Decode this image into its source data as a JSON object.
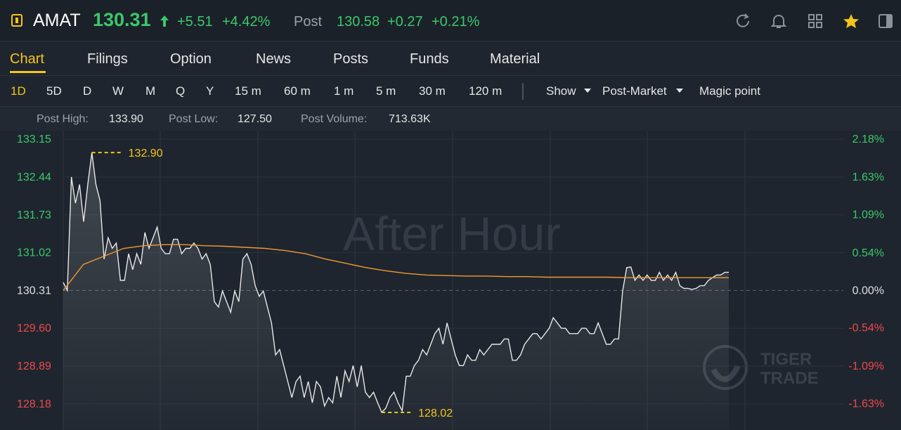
{
  "header": {
    "symbol": "AMAT",
    "price": "130.31",
    "change": "+5.51",
    "change_pct": "+4.42%",
    "post_label": "Post",
    "post_price": "130.58",
    "post_change": "+0.27",
    "post_change_pct": "+0.21%"
  },
  "tabs": [
    "Chart",
    "Filings",
    "Option",
    "News",
    "Posts",
    "Funds",
    "Material"
  ],
  "periods": [
    "1D",
    "5D",
    "D",
    "W",
    "M",
    "Q",
    "Y",
    "15 m",
    "60 m",
    "1 m",
    "5 m",
    "30 m",
    "120 m"
  ],
  "menus": [
    "Show",
    "Post-Market",
    "Magic point"
  ],
  "stats": [
    {
      "label": "Post High:",
      "value": "133.90"
    },
    {
      "label": "Post Low:",
      "value": "127.50"
    },
    {
      "label": "Post Volume:",
      "value": "713.63K"
    }
  ],
  "chart_data": {
    "type": "line",
    "watermark": "After Hour",
    "logo": [
      "TIGER",
      "TRADE"
    ],
    "ylim": [
      127.69,
      133.31
    ],
    "yticks": [
      133.15,
      132.44,
      131.73,
      131.02,
      130.31,
      {
        "value": 129.6,
        "label": "129.60"
      },
      128.89,
      128.18
    ],
    "y2lim": [
      -2.01,
      2.3
    ],
    "y2ticks": [
      {
        "value": 2.18,
        "label": "2.18%"
      },
      {
        "value": 1.63,
        "label": "1.63%"
      },
      {
        "value": 1.09,
        "label": "1.09%"
      },
      {
        "value": 0.54,
        "label": "0.54%"
      },
      {
        "value": 0,
        "label": "0.00%"
      },
      {
        "value": -0.54,
        "label": "-0.54%"
      },
      {
        "value": -1.09,
        "label": "-1.09%"
      },
      {
        "value": -1.63,
        "label": "-1.63%"
      }
    ],
    "series": [
      {
        "color": "#e8e8e8",
        "values": [
          130.46,
          130.31,
          132.44,
          131.95,
          132.3,
          131.6,
          132.3,
          132.9,
          132.3,
          132.0,
          130.9,
          131.3,
          131.1,
          131.2,
          130.5,
          130.5,
          131.0,
          130.7,
          131.0,
          130.8,
          131.4,
          131.1,
          131.3,
          131.5,
          131.1,
          131.0,
          131.0,
          131.27,
          131.27,
          131.0,
          131.1,
          131.1,
          131.2,
          131.1,
          130.9,
          131.0,
          130.8,
          130.1,
          130.0,
          130.3,
          130.1,
          129.9,
          130.3,
          130.1,
          130.9,
          131.0,
          130.8,
          130.4,
          130.2,
          130.3,
          130.0,
          129.7,
          129.1,
          129.2,
          128.9,
          128.6,
          128.3,
          128.6,
          128.7,
          128.3,
          128.6,
          128.2,
          128.6,
          128.5,
          128.14,
          128.3,
          128.2,
          128.7,
          128.3,
          128.8,
          128.6,
          128.9,
          128.5,
          128.9,
          128.4,
          128.3,
          128.4,
          128.2,
          128.02,
          128.1,
          128.3,
          128.4,
          128.2,
          128.05,
          128.7,
          128.7,
          128.9,
          129.0,
          129.2,
          129.1,
          129.3,
          129.5,
          129.6,
          129.3,
          129.7,
          129.4,
          129.1,
          128.9,
          128.9,
          129.1,
          129.0,
          129.0,
          129.2,
          129.1,
          129.2,
          129.3,
          129.3,
          129.3,
          129.4,
          129.4,
          129.0,
          129.0,
          129.1,
          129.3,
          129.4,
          129.5,
          129.5,
          129.4,
          129.5,
          129.6,
          129.8,
          129.7,
          129.6,
          129.6,
          129.5,
          129.5,
          129.5,
          129.6,
          129.6,
          129.5,
          129.5,
          129.7,
          129.5,
          129.3,
          129.3,
          129.4,
          129.4,
          130.3,
          130.74,
          130.75,
          130.5,
          130.6,
          130.5,
          130.6,
          130.5,
          130.5,
          130.65,
          130.5,
          130.6,
          130.5,
          130.65,
          130.4,
          130.35,
          130.35,
          130.33,
          130.35,
          130.4,
          130.4,
          130.5,
          130.55,
          130.6,
          130.6,
          130.65,
          130.65
        ]
      },
      {
        "color": "#f09a30",
        "values": [
          130.31,
          130.8,
          130.95,
          131.1,
          131.15,
          131.17,
          131.17,
          131.15,
          131.14,
          131.12,
          131.1,
          131.06,
          131.0,
          130.9,
          130.82,
          130.74,
          130.68,
          130.63,
          130.6,
          130.59,
          130.58,
          130.58,
          130.57,
          130.57,
          130.56,
          130.56,
          130.56,
          130.56,
          130.55,
          130.55,
          130.55,
          130.55,
          130.55,
          130.55
        ]
      }
    ],
    "annotations": [
      {
        "value": 132.9,
        "label": "132.90"
      },
      {
        "value": 128.02,
        "label": "128.02"
      }
    ],
    "area": true,
    "grid": true,
    "colors": {
      "up": "#3cc86a",
      "down": "#f0474d",
      "flat": "#e0e0e0",
      "annotation": "#f5c518"
    }
  }
}
